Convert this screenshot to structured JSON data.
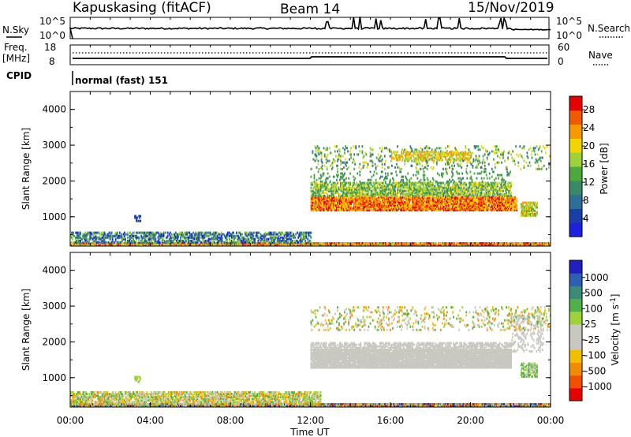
{
  "header": {
    "station": "Kapuskasing (fitACF)",
    "beam": "Beam 14",
    "date": "15/Nov/2019"
  },
  "top_panel": {
    "nsky_label": "N.Sky",
    "nsearch_label": "N.Search",
    "left_ticks": [
      "10^5",
      "10^0"
    ],
    "right_ticks": [
      "10^5",
      "10^0"
    ]
  },
  "freq_panel": {
    "freq_label_1": "Freq.",
    "freq_label_2": "[MHz]",
    "nave_label": "Nave",
    "left_ticks": [
      "18",
      "8"
    ],
    "right_ticks": [
      "60",
      "0"
    ]
  },
  "cpid": {
    "label": "CPID",
    "value": "normal (fast) 151"
  },
  "colors": {
    "power_scale": [
      "#1f1fe0",
      "#1a3ea8",
      "#2d6f96",
      "#3a8a6a",
      "#4caa3c",
      "#9ed23a",
      "#f2d400",
      "#f59a00",
      "#f05a00",
      "#e60000"
    ],
    "velocity_scale": [
      "#2020c0",
      "#2e5fb0",
      "#3c8a78",
      "#52b04a",
      "#9ed23a",
      "#c8c8c0",
      "#c8c8c0",
      "#f0c000",
      "#f08c00",
      "#f05000",
      "#e60000"
    ]
  },
  "chart_data": [
    {
      "type": "heatmap",
      "name": "power",
      "ylabel": "Slant Range [km]",
      "yticks": [
        "1000",
        "2000",
        "3000",
        "4000"
      ],
      "ylim": [
        180,
        4500
      ],
      "xlim": [
        "00:00",
        "24:00"
      ],
      "colorbar_label": "Power [dB]",
      "colorbar_ticks": [
        "4",
        "8",
        "12",
        "16",
        "20",
        "24",
        "28"
      ],
      "colorbar_range": [
        0,
        31
      ],
      "regions": [
        {
          "t": [
            0,
            12
          ],
          "r": [
            250,
            500
          ],
          "level": "4-16 dB"
        },
        {
          "t": [
            3.2,
            3.5
          ],
          "r": [
            850,
            1000
          ],
          "level": "8 dB"
        },
        {
          "t": [
            12,
            23
          ],
          "r": [
            1100,
            1600
          ],
          "level": "20-31 dB"
        },
        {
          "t": [
            12,
            22
          ],
          "r": [
            1600,
            1900
          ],
          "level": "12-20 dB"
        },
        {
          "t": [
            12,
            23.8
          ],
          "r": [
            2300,
            2900
          ],
          "level": "8-24 dB"
        },
        {
          "t": [
            22.5,
            23.3
          ],
          "r": [
            1000,
            1400
          ],
          "level": "12-24 dB"
        }
      ]
    },
    {
      "type": "heatmap",
      "name": "velocity",
      "ylabel": "Slant Range [km]",
      "yticks": [
        "1000",
        "2000",
        "3000",
        "4000"
      ],
      "ylim": [
        180,
        4500
      ],
      "xlim": [
        "00:00",
        "24:00"
      ],
      "xticks": [
        "00:00",
        "04:00",
        "08:00",
        "12:00",
        "16:00",
        "20:00",
        "00:00"
      ],
      "xlabel": "Time UT",
      "colorbar_label": "Velocity [m s^-1]",
      "colorbar_ticks": [
        "1000",
        "500",
        "100",
        "25",
        "-25",
        "-100",
        "-500",
        "-1000"
      ],
      "regions": [
        {
          "t": [
            0,
            12
          ],
          "r": [
            250,
            500
          ],
          "level": "-100 to 100 m/s"
        },
        {
          "t": [
            12,
            23
          ],
          "r": [
            1100,
            1900
          ],
          "level": "-25 to 25 m/s (ground scatter)"
        },
        {
          "t": [
            12,
            23.8
          ],
          "r": [
            2300,
            2900
          ],
          "level": "-100 to 100 m/s"
        }
      ]
    }
  ]
}
